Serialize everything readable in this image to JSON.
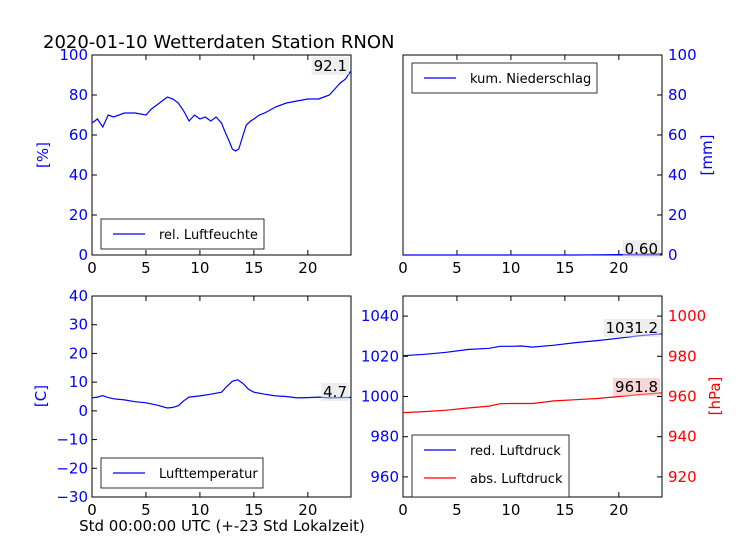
{
  "title": "2020-01-10 Wetterdaten Station RNON",
  "xlabel": "Std 00:00:00 UTC (+-23 Std Lokalzeit)",
  "colors": {
    "blue": "#0000ff",
    "red": "#ff0000",
    "black": "#000000"
  },
  "chart_data": [
    {
      "type": "line",
      "panel": "top-left",
      "ylabel": "[%]",
      "xlim": [
        0,
        24
      ],
      "ylim": [
        0,
        100
      ],
      "xticks": [
        "0",
        "5",
        "10",
        "15",
        "20"
      ],
      "yticks": [
        "0",
        "20",
        "40",
        "60",
        "80",
        "100"
      ],
      "legend_position": "lower-left",
      "last_value_label": "92.1",
      "series": [
        {
          "name": "rel. Luftfeuchte",
          "color": "#0000ff",
          "x": [
            0,
            0.5,
            1,
            1.5,
            2,
            3,
            4,
            5,
            5.5,
            6,
            6.5,
            7,
            7.5,
            8,
            8.5,
            9,
            9.5,
            10,
            10.5,
            11,
            11.5,
            12,
            12.3,
            12.7,
            13,
            13.3,
            13.6,
            14,
            14.3,
            14.7,
            15,
            15.5,
            16,
            17,
            18,
            19,
            20,
            21,
            21.5,
            22,
            22.5,
            23,
            23.5,
            24
          ],
          "y": [
            66,
            68,
            64,
            70,
            69,
            71,
            71,
            70,
            73,
            75,
            77,
            79,
            78,
            76,
            72,
            67,
            70,
            68,
            69,
            67,
            69,
            66,
            62,
            57,
            53,
            52,
            53,
            60,
            65,
            67,
            68,
            70,
            71,
            74,
            76,
            77,
            78,
            78,
            79,
            80,
            83,
            86,
            88,
            92.1
          ]
        }
      ]
    },
    {
      "type": "line",
      "panel": "top-right",
      "ylabel": "[mm]",
      "xlim": [
        0,
        24
      ],
      "ylim": [
        0,
        100
      ],
      "xticks": [
        "0",
        "5",
        "10",
        "15",
        "20"
      ],
      "yticks": [
        "0",
        "20",
        "40",
        "60",
        "80",
        "100"
      ],
      "legend_position": "upper-left",
      "last_value_label": "0.60",
      "series": [
        {
          "name": "kum. Niederschlag",
          "color": "#0000ff",
          "x": [
            0,
            4,
            8,
            12,
            16,
            18,
            20,
            22,
            23,
            24
          ],
          "y": [
            0,
            0,
            0,
            0,
            0,
            0.1,
            0.2,
            0.4,
            0.5,
            0.6
          ]
        }
      ]
    },
    {
      "type": "line",
      "panel": "bottom-left",
      "ylabel": "[C]",
      "xlim": [
        0,
        24
      ],
      "ylim": [
        -30,
        40
      ],
      "xticks": [
        "0",
        "5",
        "10",
        "15",
        "20"
      ],
      "yticks": [
        "−30",
        "−20",
        "−10",
        "0",
        "10",
        "20",
        "30",
        "40"
      ],
      "legend_position": "lower-left",
      "last_value_label": "4.7",
      "series": [
        {
          "name": "Lufttemperatur",
          "color": "#0000ff",
          "x": [
            0,
            0.5,
            1,
            1.5,
            2,
            3,
            4,
            5,
            6,
            7,
            7.5,
            8,
            8.5,
            9,
            10,
            11,
            12,
            12.5,
            13,
            13.5,
            14,
            14.5,
            15,
            16,
            17,
            18,
            19,
            20,
            21,
            22,
            23,
            24
          ],
          "y": [
            4.5,
            4.8,
            5.3,
            4.6,
            4.2,
            3.8,
            3.2,
            2.8,
            2.0,
            1.0,
            1.2,
            1.8,
            3.5,
            4.8,
            5.2,
            5.8,
            6.5,
            8.5,
            10.3,
            10.8,
            9.5,
            7.5,
            6.5,
            5.8,
            5.2,
            5.0,
            4.5,
            4.6,
            4.8,
            4.5,
            4.6,
            4.7
          ]
        }
      ]
    },
    {
      "type": "line",
      "panel": "bottom-right",
      "ylabel": "[hPa]",
      "xlim": [
        0,
        24
      ],
      "ylim_left": [
        950,
        1050
      ],
      "ylim_right": [
        910,
        1010
      ],
      "xticks": [
        "0",
        "5",
        "10",
        "15",
        "20"
      ],
      "yticks_left": [
        "960",
        "980",
        "1000",
        "1020",
        "1040"
      ],
      "yticks_right": [
        "920",
        "940",
        "960",
        "980",
        "1000"
      ],
      "legend_position": "lower-left",
      "last_value_labels": [
        "1031.2",
        "961.8"
      ],
      "series": [
        {
          "name": "red. Luftdruck",
          "color": "#0000ff",
          "axis": "left",
          "x": [
            0,
            2,
            4,
            6,
            8,
            9,
            10,
            11,
            12,
            14,
            16,
            18,
            20,
            22,
            24
          ],
          "y": [
            1020.3,
            1021.0,
            1022.0,
            1023.4,
            1024.0,
            1025.0,
            1025.0,
            1025.1,
            1024.6,
            1025.5,
            1026.8,
            1027.8,
            1029.0,
            1030.3,
            1031.2
          ]
        },
        {
          "name": "abs. Luftdruck",
          "color": "#ff0000",
          "axis": "right",
          "x": [
            0,
            2,
            4,
            6,
            8,
            9,
            10,
            11,
            12,
            14,
            16,
            18,
            20,
            22,
            24
          ],
          "y": [
            952.0,
            952.5,
            953.2,
            954.3,
            955.2,
            956.4,
            956.5,
            956.5,
            956.5,
            957.8,
            958.4,
            959.0,
            960.0,
            961.0,
            961.8
          ]
        }
      ]
    }
  ]
}
